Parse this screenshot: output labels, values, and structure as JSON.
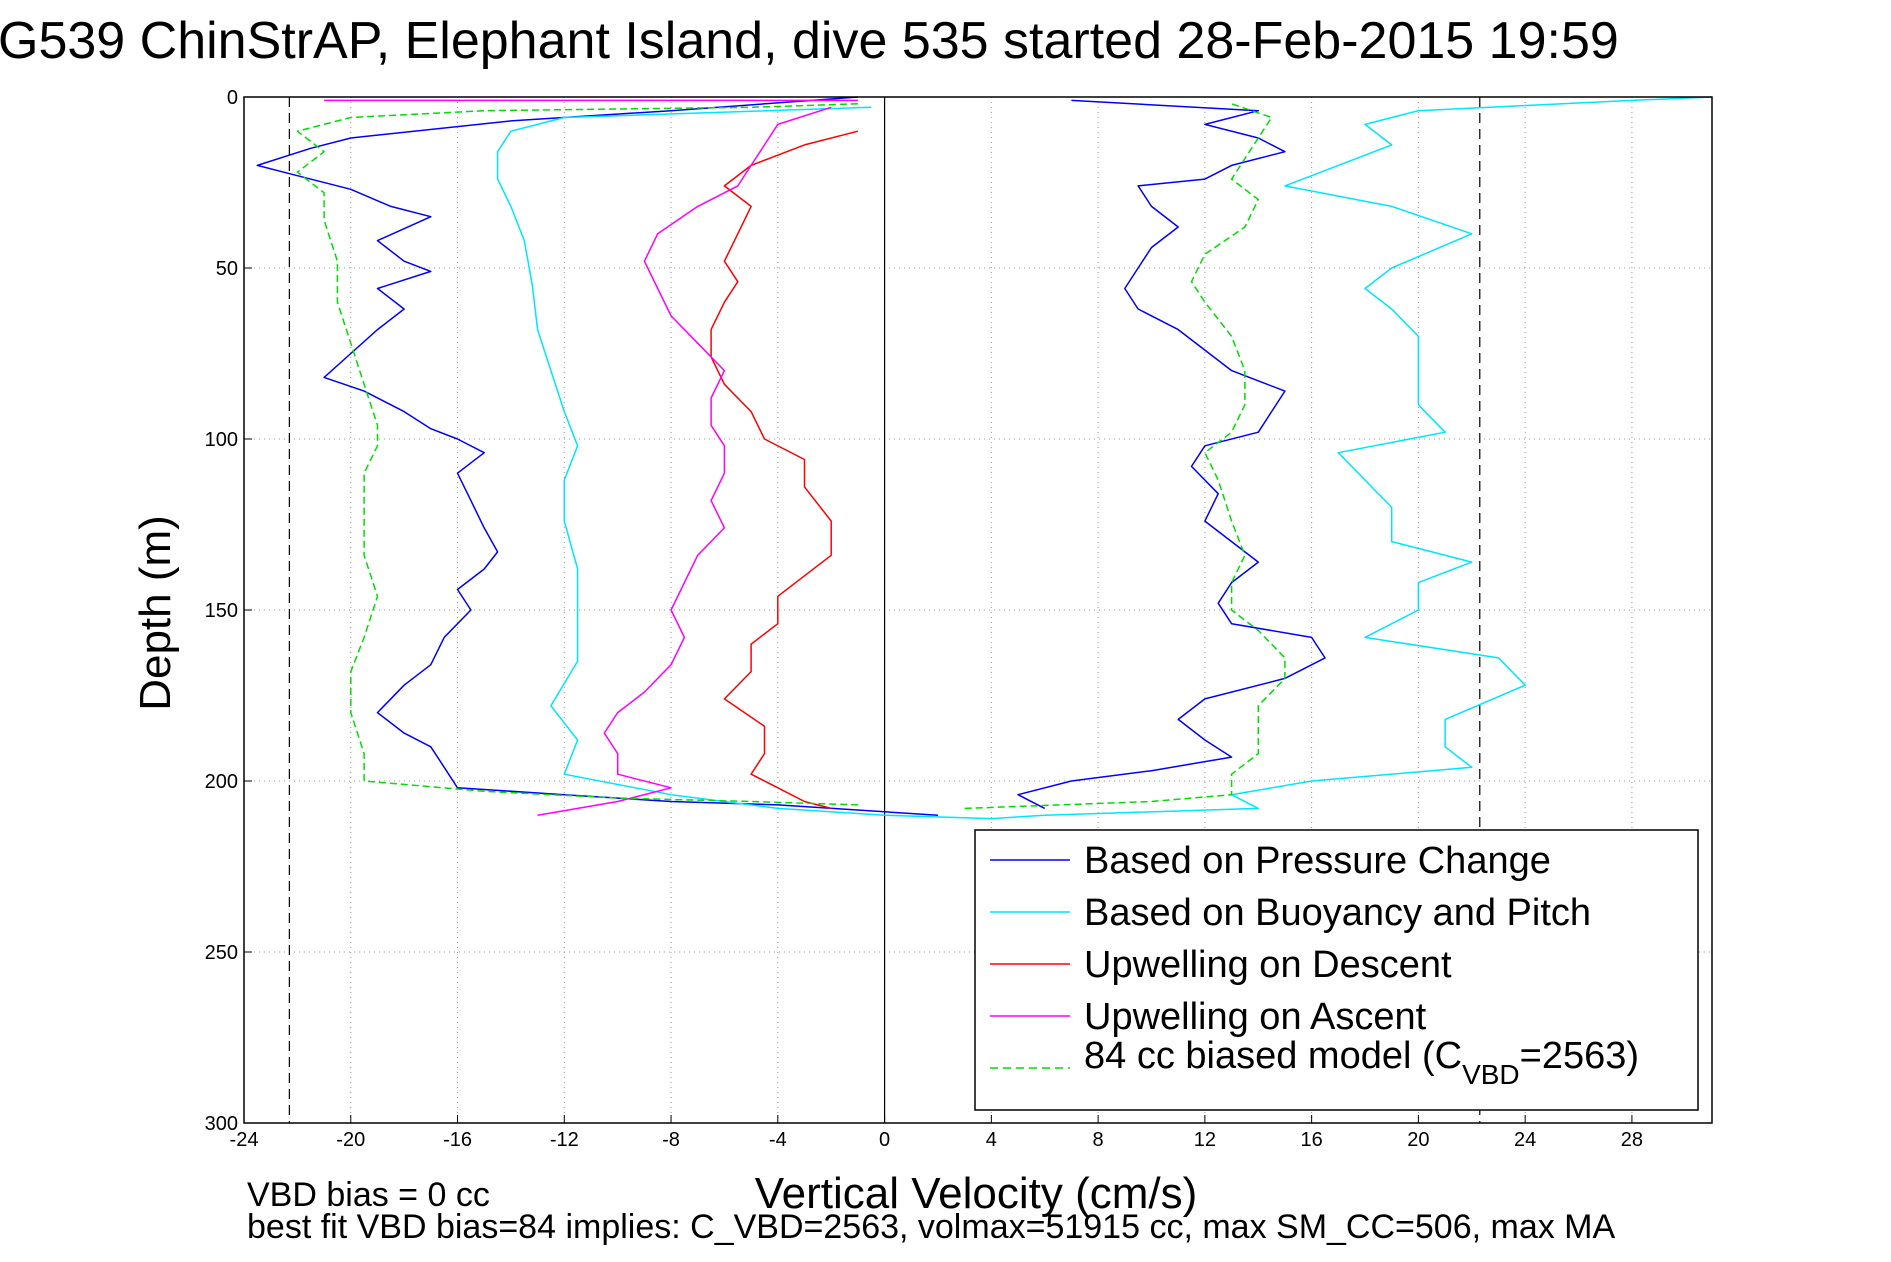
{
  "chart_data": {
    "type": "line",
    "title": "G539 ChinStrAP, Elephant Island, dive 535 started 28-Feb-2015 19:59",
    "xlabel": "Vertical Velocity (cm/s)",
    "ylabel": "Depth (m)",
    "xlim": [
      -24,
      31
    ],
    "ylim": [
      300,
      0
    ],
    "y_reversed": true,
    "grid": true,
    "legend_position": "bottom-right",
    "x_ticks": [
      -24,
      -20,
      -16,
      -12,
      -8,
      -4,
      0,
      4,
      8,
      12,
      16,
      20,
      24,
      28
    ],
    "y_ticks": [
      0,
      50,
      100,
      150,
      200,
      250,
      300
    ],
    "vertical_reference_lines": [
      -22.3,
      0,
      22.3
    ],
    "legend": {
      "pressure": "Based on Pressure Change",
      "buoyancy": "Based on Buoyancy and Pitch",
      "descent": "Upwelling on Descent",
      "ascent": "Upwelling on Ascent",
      "model_prefix": "84 cc biased model (C",
      "model_sub": "VBD",
      "model_suffix": "=2563)"
    },
    "series": [
      {
        "key": "pressure_descent",
        "name": "Based on Pressure Change",
        "color": "#0000ff",
        "style": "solid",
        "points": [
          [
            -1,
            0
          ],
          [
            -8,
            4
          ],
          [
            -14,
            7
          ],
          [
            -20,
            12
          ],
          [
            -21.5,
            15
          ],
          [
            -23.5,
            20
          ],
          [
            -22,
            23
          ],
          [
            -20,
            27
          ],
          [
            -18.5,
            32
          ],
          [
            -17,
            35
          ],
          [
            -19,
            42
          ],
          [
            -18,
            48
          ],
          [
            -17,
            51
          ],
          [
            -19,
            56
          ],
          [
            -18,
            62
          ],
          [
            -19,
            68
          ],
          [
            -20,
            75
          ],
          [
            -21,
            82
          ],
          [
            -19.5,
            86
          ],
          [
            -18,
            92
          ],
          [
            -17,
            97
          ],
          [
            -16,
            100
          ],
          [
            -15,
            104
          ],
          [
            -16,
            110
          ],
          [
            -15.5,
            118
          ],
          [
            -15,
            126
          ],
          [
            -14.5,
            133
          ],
          [
            -15,
            138
          ],
          [
            -16,
            144
          ],
          [
            -15.5,
            150
          ],
          [
            -16.5,
            158
          ],
          [
            -17,
            166
          ],
          [
            -18,
            172
          ],
          [
            -19,
            180
          ],
          [
            -18,
            186
          ],
          [
            -17,
            190
          ],
          [
            -16.5,
            196
          ],
          [
            -16,
            202
          ],
          [
            -12,
            204
          ],
          [
            -8,
            206
          ],
          [
            -4,
            207
          ],
          [
            0,
            209
          ],
          [
            2,
            210
          ]
        ]
      },
      {
        "key": "pressure_ascent",
        "name": "Based on Pressure Change",
        "color": "#0000ff",
        "style": "solid",
        "points": [
          [
            6,
            208
          ],
          [
            5,
            204
          ],
          [
            7,
            200
          ],
          [
            10,
            197
          ],
          [
            13,
            193
          ],
          [
            12,
            188
          ],
          [
            11,
            182
          ],
          [
            12,
            176
          ],
          [
            15,
            170
          ],
          [
            16.5,
            164
          ],
          [
            16,
            158
          ],
          [
            13,
            154
          ],
          [
            12.5,
            148
          ],
          [
            13,
            142
          ],
          [
            14,
            136
          ],
          [
            13,
            130
          ],
          [
            12,
            124
          ],
          [
            12.5,
            116
          ],
          [
            11.5,
            108
          ],
          [
            12,
            102
          ],
          [
            14,
            98
          ],
          [
            14.5,
            92
          ],
          [
            15,
            86
          ],
          [
            13,
            80
          ],
          [
            12,
            74
          ],
          [
            11,
            68
          ],
          [
            9.5,
            62
          ],
          [
            9,
            56
          ],
          [
            9.5,
            50
          ],
          [
            10,
            44
          ],
          [
            11,
            38
          ],
          [
            10,
            32
          ],
          [
            9.5,
            26
          ],
          [
            12,
            24
          ],
          [
            13,
            20
          ],
          [
            15,
            16
          ],
          [
            14,
            12
          ],
          [
            12,
            8
          ],
          [
            14,
            4
          ],
          [
            7,
            1
          ]
        ]
      },
      {
        "key": "buoyancy_descent",
        "name": "Based on Buoyancy and Pitch",
        "color": "#00e5ff",
        "style": "solid",
        "points": [
          [
            -0.5,
            3
          ],
          [
            -12,
            6
          ],
          [
            -14,
            10
          ],
          [
            -14.5,
            16
          ],
          [
            -14.5,
            24
          ],
          [
            -14,
            32
          ],
          [
            -13.5,
            42
          ],
          [
            -13.2,
            55
          ],
          [
            -13,
            68
          ],
          [
            -12.5,
            80
          ],
          [
            -12,
            92
          ],
          [
            -11.5,
            102
          ],
          [
            -12,
            112
          ],
          [
            -12,
            124
          ],
          [
            -11.5,
            138
          ],
          [
            -11.5,
            150
          ],
          [
            -11.5,
            165
          ],
          [
            -12.5,
            178
          ],
          [
            -11.5,
            188
          ],
          [
            -12,
            198
          ],
          [
            -8,
            204
          ],
          [
            -4,
            208
          ],
          [
            0,
            210
          ],
          [
            4,
            211
          ],
          [
            6,
            210
          ]
        ]
      },
      {
        "key": "buoyancy_ascent",
        "name": "Based on Buoyancy and Pitch",
        "color": "#00e5ff",
        "style": "solid",
        "points": [
          [
            6,
            210
          ],
          [
            14,
            208
          ],
          [
            13,
            204
          ],
          [
            16,
            200
          ],
          [
            22,
            196
          ],
          [
            21,
            190
          ],
          [
            21,
            182
          ],
          [
            24,
            172
          ],
          [
            23,
            164
          ],
          [
            18,
            158
          ],
          [
            20,
            150
          ],
          [
            20,
            142
          ],
          [
            22,
            136
          ],
          [
            19,
            130
          ],
          [
            19,
            120
          ],
          [
            18,
            112
          ],
          [
            17,
            104
          ],
          [
            21,
            98
          ],
          [
            20,
            90
          ],
          [
            20,
            80
          ],
          [
            20,
            70
          ],
          [
            19,
            62
          ],
          [
            18,
            56
          ],
          [
            19,
            50
          ],
          [
            22,
            40
          ],
          [
            19,
            32
          ],
          [
            15,
            26
          ],
          [
            17,
            20
          ],
          [
            19,
            14
          ],
          [
            18,
            8
          ],
          [
            20,
            4
          ],
          [
            28,
            1
          ],
          [
            31,
            0
          ]
        ]
      },
      {
        "key": "descent_upwelling",
        "name": "Upwelling on Descent",
        "color": "#ff0000",
        "style": "solid",
        "points": [
          [
            -1,
            10
          ],
          [
            -3,
            14
          ],
          [
            -5,
            20
          ],
          [
            -6,
            26
          ],
          [
            -5,
            32
          ],
          [
            -5.5,
            40
          ],
          [
            -6,
            48
          ],
          [
            -5.5,
            54
          ],
          [
            -6,
            60
          ],
          [
            -6.5,
            68
          ],
          [
            -6.5,
            76
          ],
          [
            -6,
            84
          ],
          [
            -5,
            92
          ],
          [
            -4.5,
            100
          ],
          [
            -3,
            106
          ],
          [
            -3,
            114
          ],
          [
            -2,
            124
          ],
          [
            -2,
            134
          ],
          [
            -3,
            140
          ],
          [
            -4,
            146
          ],
          [
            -4,
            154
          ],
          [
            -5,
            160
          ],
          [
            -5,
            168
          ],
          [
            -6,
            176
          ],
          [
            -4.5,
            184
          ],
          [
            -4.5,
            192
          ],
          [
            -5,
            198
          ],
          [
            -4,
            202
          ],
          [
            -3,
            206
          ],
          [
            -2,
            208
          ]
        ]
      },
      {
        "key": "ascent_upwelling",
        "name": "Upwelling on Ascent",
        "color": "#ff00ff",
        "style": "solid",
        "points": [
          [
            -13,
            210
          ],
          [
            -10,
            206
          ],
          [
            -8,
            202
          ],
          [
            -10,
            198
          ],
          [
            -10,
            192
          ],
          [
            -10.5,
            186
          ],
          [
            -10,
            180
          ],
          [
            -9,
            174
          ],
          [
            -8,
            166
          ],
          [
            -7.5,
            158
          ],
          [
            -8,
            150
          ],
          [
            -7.5,
            142
          ],
          [
            -7,
            134
          ],
          [
            -6,
            126
          ],
          [
            -6.5,
            118
          ],
          [
            -6,
            110
          ],
          [
            -6,
            102
          ],
          [
            -6.5,
            96
          ],
          [
            -6.5,
            88
          ],
          [
            -6,
            80
          ],
          [
            -7,
            72
          ],
          [
            -8,
            64
          ],
          [
            -8.5,
            56
          ],
          [
            -9,
            48
          ],
          [
            -8.5,
            40
          ],
          [
            -7,
            32
          ],
          [
            -5.5,
            26
          ],
          [
            -5,
            20
          ],
          [
            -4.5,
            14
          ],
          [
            -4,
            8
          ],
          [
            -2,
            3
          ]
        ]
      },
      {
        "key": "ascent_surface",
        "name": "Upwelling on Ascent",
        "color": "#ff00ff",
        "style": "solid",
        "points": [
          [
            -21,
            1
          ],
          [
            -1,
            1
          ]
        ]
      },
      {
        "key": "model_descent",
        "name": "84 cc biased model (CVBD=2563)",
        "color": "#00dd00",
        "style": "dashed",
        "points": [
          [
            -1,
            2
          ],
          [
            -5,
            3
          ],
          [
            -15,
            4
          ],
          [
            -20,
            6
          ],
          [
            -22,
            10
          ],
          [
            -21,
            16
          ],
          [
            -22,
            22
          ],
          [
            -21,
            28
          ],
          [
            -21,
            36
          ],
          [
            -20.5,
            48
          ],
          [
            -20.5,
            60
          ],
          [
            -20,
            72
          ],
          [
            -19.5,
            84
          ],
          [
            -19,
            96
          ],
          [
            -19,
            102
          ],
          [
            -19.5,
            110
          ],
          [
            -19.5,
            122
          ],
          [
            -19.5,
            134
          ],
          [
            -19,
            146
          ],
          [
            -19.5,
            158
          ],
          [
            -20,
            168
          ],
          [
            -20,
            180
          ],
          [
            -19.5,
            192
          ],
          [
            -19.5,
            200
          ],
          [
            -15,
            203
          ],
          [
            -10,
            205
          ],
          [
            -5,
            206
          ],
          [
            -1,
            207
          ]
        ]
      },
      {
        "key": "model_ascent",
        "name": "84 cc biased model (CVBD=2563)",
        "color": "#00dd00",
        "style": "dashed",
        "points": [
          [
            3,
            208
          ],
          [
            10,
            206
          ],
          [
            13,
            204
          ],
          [
            13,
            198
          ],
          [
            14,
            192
          ],
          [
            14,
            186
          ],
          [
            14,
            178
          ],
          [
            15,
            170
          ],
          [
            15,
            164
          ],
          [
            14,
            156
          ],
          [
            13,
            150
          ],
          [
            13,
            142
          ],
          [
            13.5,
            134
          ],
          [
            13,
            124
          ],
          [
            12.5,
            112
          ],
          [
            12,
            104
          ],
          [
            13,
            98
          ],
          [
            13.5,
            90
          ],
          [
            13.5,
            80
          ],
          [
            13,
            70
          ],
          [
            12,
            60
          ],
          [
            11.5,
            54
          ],
          [
            12,
            46
          ],
          [
            13.5,
            38
          ],
          [
            14,
            30
          ],
          [
            13,
            24
          ],
          [
            13.5,
            18
          ],
          [
            14,
            12
          ],
          [
            14.5,
            6
          ],
          [
            13,
            2
          ]
        ]
      }
    ]
  },
  "footer": {
    "line1": "VBD bias = 0 cc",
    "line2": "best fit VBD bias=84 implies: C_VBD=2563, volmax=51915 cc, max SM_CC=506, max MA"
  }
}
